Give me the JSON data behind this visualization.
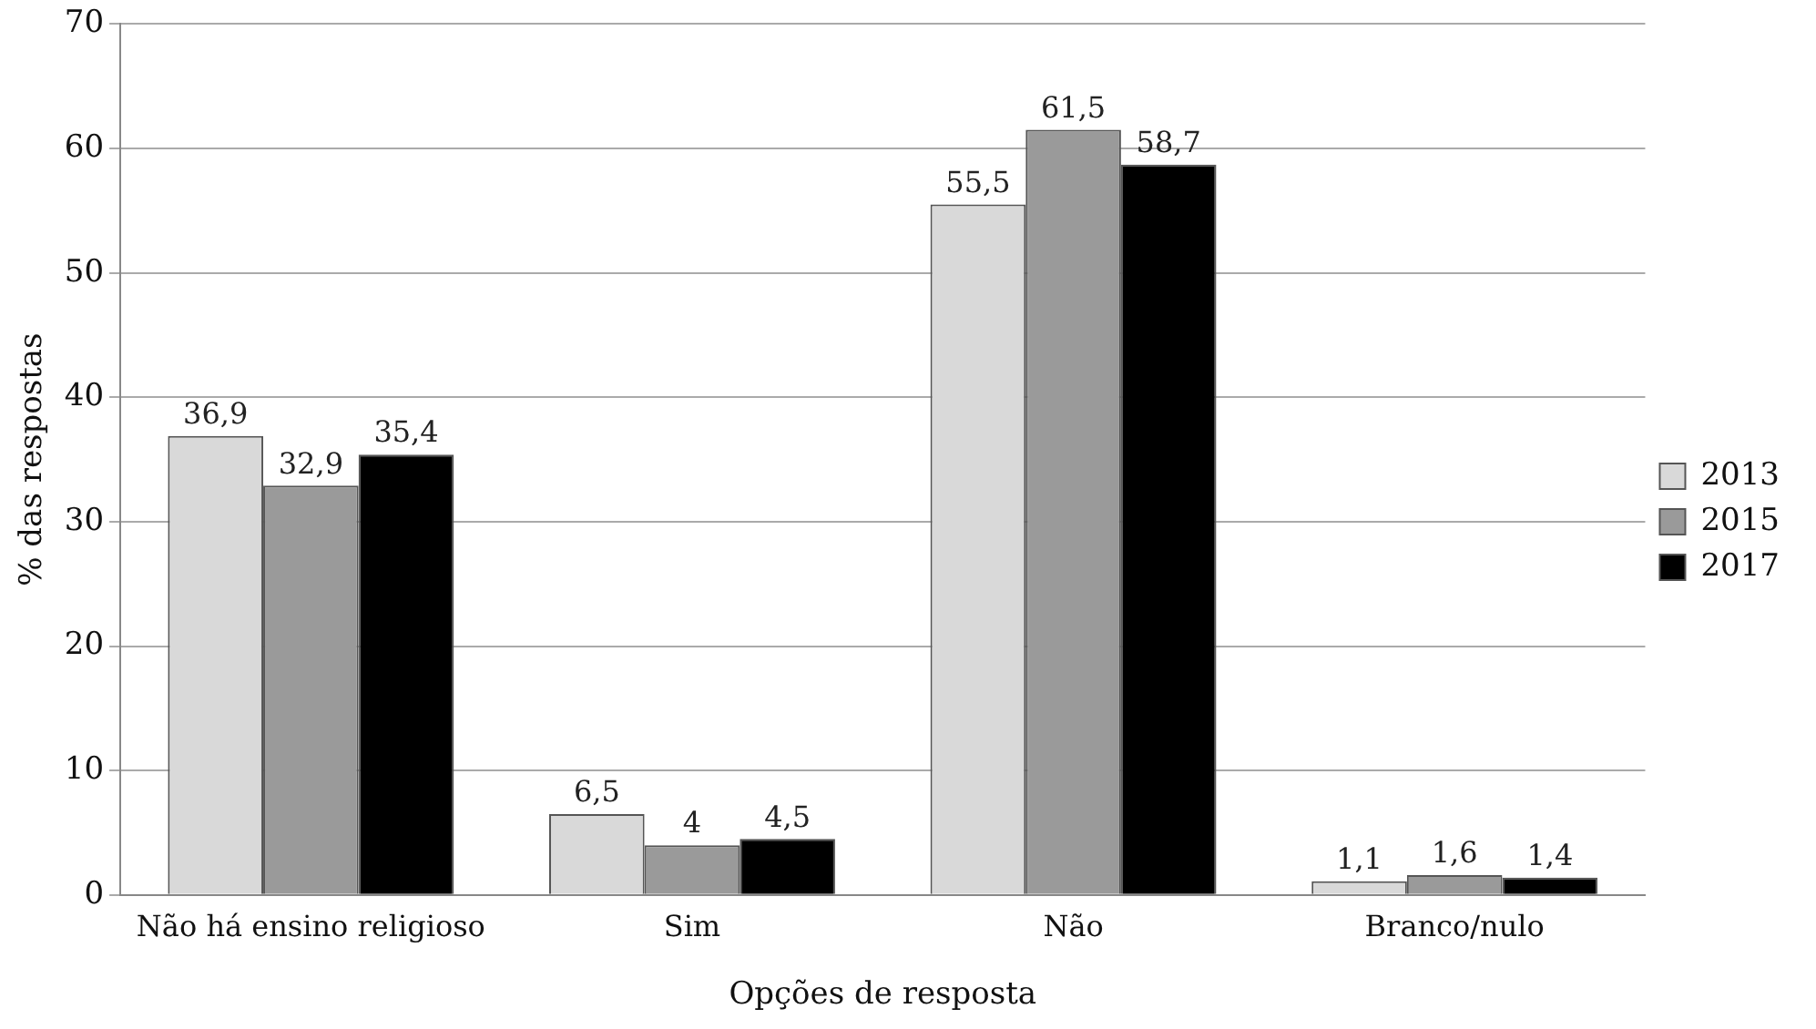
{
  "chart_data": {
    "type": "bar",
    "xlabel": "Opções de resposta",
    "ylabel": "% das respostas",
    "categories": [
      "Não há ensino religioso",
      "Sim",
      "Não",
      "Branco/nulo"
    ],
    "series": [
      {
        "name": "2013",
        "color": "#d9d9d9",
        "values": [
          36.9,
          6.5,
          55.5,
          1.1
        ],
        "value_labels": [
          "36,9",
          "6,5",
          "55,5",
          "1,1"
        ]
      },
      {
        "name": "2015",
        "color": "#9a9a9a",
        "values": [
          32.9,
          4,
          61.5,
          1.6
        ],
        "value_labels": [
          "32,9",
          "4",
          "61,5",
          "1,6"
        ]
      },
      {
        "name": "2017",
        "color": "#000000",
        "values": [
          35.4,
          4.5,
          58.7,
          1.4
        ],
        "value_labels": [
          "35,4",
          "4,5",
          "58,7",
          "1,4"
        ]
      }
    ],
    "ylim": [
      0,
      70
    ],
    "yticks": [
      0,
      10,
      20,
      30,
      40,
      50,
      60,
      70
    ],
    "grid": "y",
    "legend": "right"
  }
}
